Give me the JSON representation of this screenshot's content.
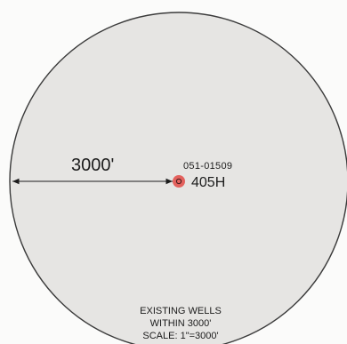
{
  "map": {
    "radius_label": "3000'",
    "well": {
      "api_number": "051-01509",
      "name": "405H"
    },
    "notes": [
      "EXISTING WELLS",
      "WITHIN 3000'",
      "SCALE: 1\"=3000'"
    ],
    "colors": {
      "circle_fill": "#e6e5e3",
      "circle_stroke": "#3b3b3b",
      "well_marker": "#e2524e"
    }
  }
}
